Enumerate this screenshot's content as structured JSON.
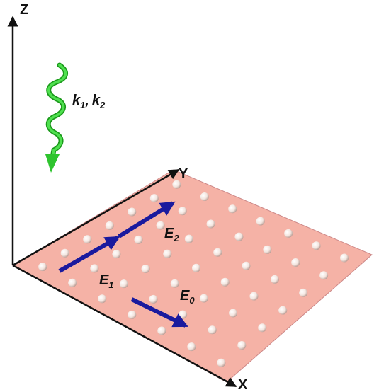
{
  "axes": {
    "z": "Z",
    "y": "Y",
    "x": "X"
  },
  "wave_label": {
    "k1_base": "k",
    "k1_sub": "1",
    "separator": ",",
    "k2_base": "k",
    "k2_sub": "2"
  },
  "fields": [
    {
      "base": "E",
      "sub": "1"
    },
    {
      "base": "E",
      "sub": "2"
    },
    {
      "base": "E",
      "sub": "0"
    }
  ]
}
